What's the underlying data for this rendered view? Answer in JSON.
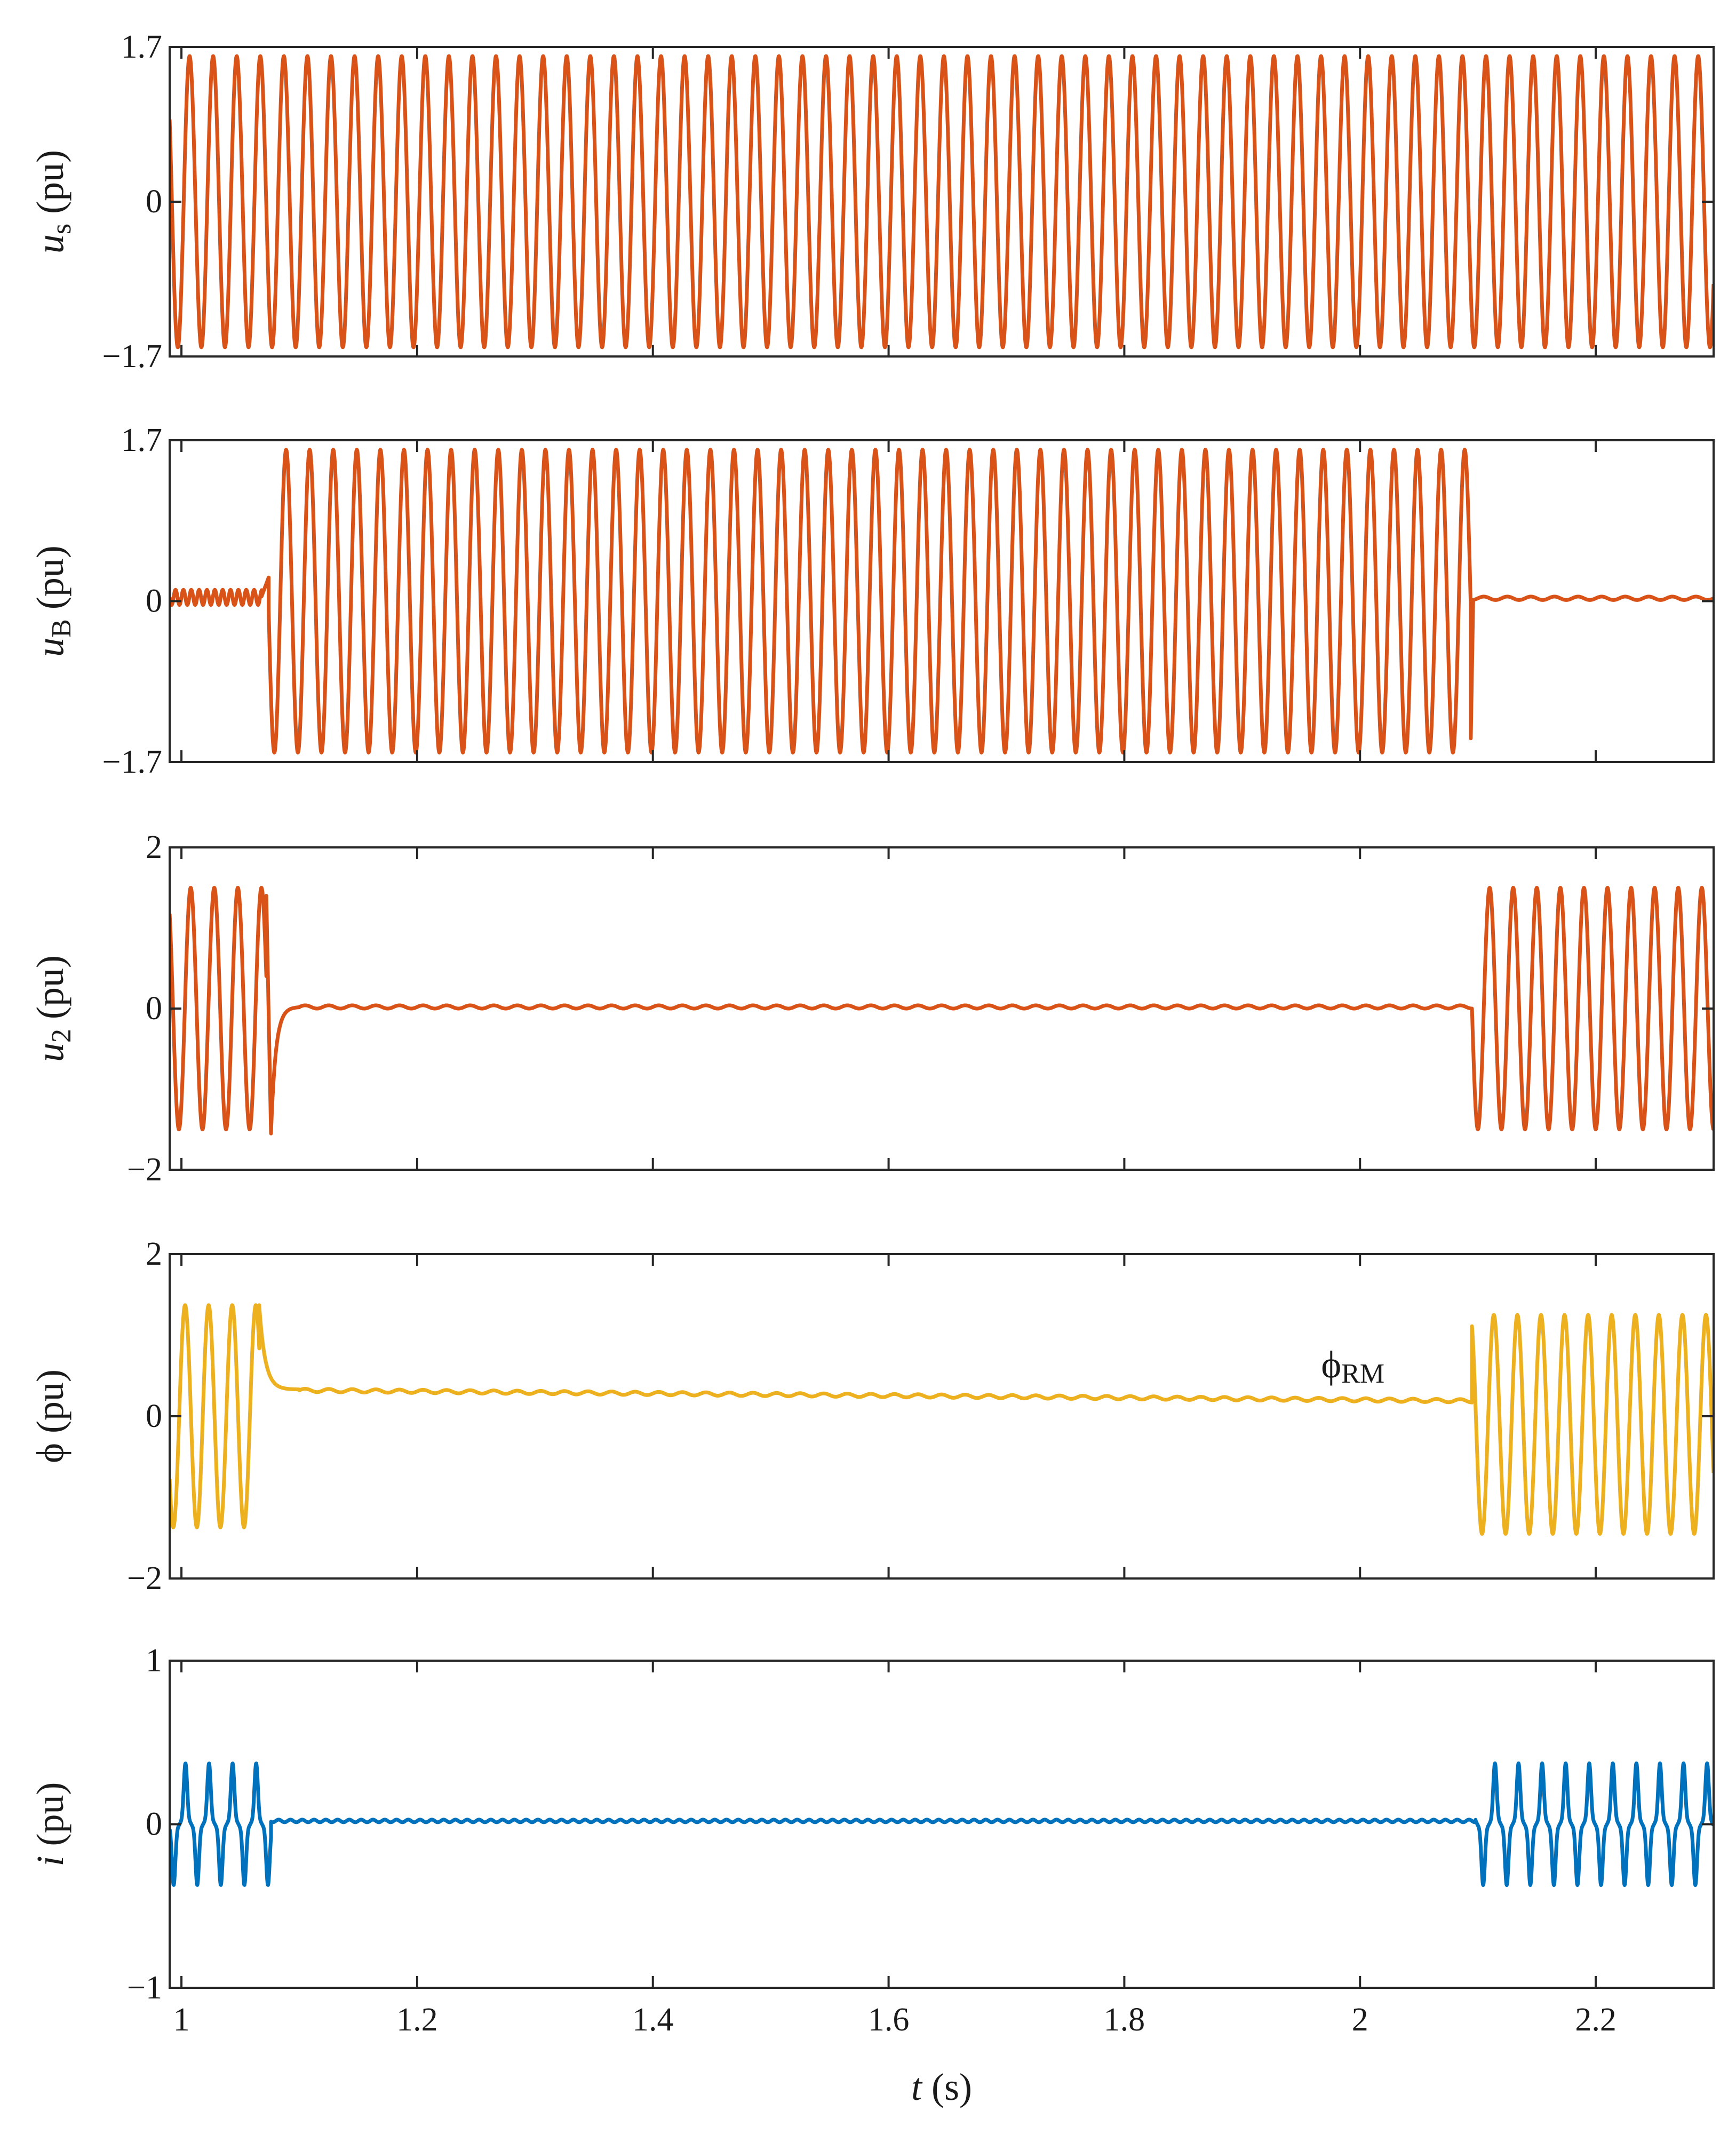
{
  "chart_data": [
    {
      "type": "line",
      "id": "us",
      "ylabel": {
        "symbol": "u",
        "sub": "s",
        "unit": " (pu)"
      },
      "ylim": [
        -1.7,
        1.7
      ],
      "yticks": [
        -1.7,
        0,
        1.7
      ],
      "ytick_labels": [
        "−1.7",
        "0",
        "1.7"
      ],
      "xlim": [
        0.99,
        2.3
      ],
      "grid": false,
      "series": [
        {
          "name": "us",
          "color": "#D95319",
          "segments": [
            {
              "t0": 0.99,
              "t1": 2.3,
              "kind": "sine",
              "amp": 1.6,
              "freq": 50,
              "phase": -0.6,
              "offset": 0
            }
          ]
        }
      ]
    },
    {
      "type": "line",
      "id": "uB",
      "ylabel": {
        "symbol": "u",
        "sub": "B",
        "unit": " (pu)"
      },
      "ylim": [
        -1.7,
        1.7
      ],
      "yticks": [
        -1.7,
        0,
        1.7
      ],
      "ytick_labels": [
        "−1.7",
        "0",
        "1.7"
      ],
      "xlim": [
        0.99,
        2.3
      ],
      "grid": false,
      "series": [
        {
          "name": "uB",
          "color": "#D95319",
          "segments": [
            {
              "t0": 0.99,
              "t1": 1.068,
              "kind": "sine",
              "amp": 0.08,
              "freq": 150,
              "phase": 0,
              "offset": 0.04
            },
            {
              "t0": 1.068,
              "t1": 1.074,
              "kind": "ramp",
              "v0": 0.05,
              "v1": 0.25
            },
            {
              "t0": 1.074,
              "t1": 2.094,
              "kind": "sine",
              "amp": 1.6,
              "freq": 50,
              "phase": -1.2,
              "offset": 0
            },
            {
              "t0": 2.094,
              "t1": 2.096,
              "kind": "ramp",
              "v0": -1.45,
              "v1": 0.0
            },
            {
              "t0": 2.096,
              "t1": 2.3,
              "kind": "sine",
              "amp": 0.018,
              "freq": 50,
              "phase": 0,
              "offset": 0.03
            }
          ]
        }
      ]
    },
    {
      "type": "line",
      "id": "u2",
      "ylabel": {
        "symbol": "u",
        "sub": "2",
        "unit": " (pu)"
      },
      "ylim": [
        -2,
        2
      ],
      "yticks": [
        -2,
        0,
        2
      ],
      "ytick_labels": [
        "−2",
        "0",
        "2"
      ],
      "xlim": [
        0.99,
        2.3
      ],
      "grid": false,
      "series": [
        {
          "name": "u2",
          "color": "#D95319",
          "segments": [
            {
              "t0": 0.99,
              "t1": 1.072,
              "kind": "sine",
              "amp": 1.5,
              "freq": 50,
              "phase": -0.9,
              "offset": 0
            },
            {
              "t0": 1.072,
              "t1": 1.076,
              "kind": "ramp",
              "v0": 1.4,
              "v1": -1.55
            },
            {
              "t0": 1.076,
              "t1": 1.1,
              "kind": "decay",
              "v0": -1.55,
              "v1": 0.02,
              "tau": 0.004
            },
            {
              "t0": 1.1,
              "t1": 2.095,
              "kind": "sine",
              "amp": 0.02,
              "freq": 50,
              "phase": 0,
              "offset": 0.02
            },
            {
              "t0": 2.095,
              "t1": 2.3,
              "kind": "sine",
              "amp": 1.5,
              "freq": 50,
              "phase": -1.57,
              "offset": 0
            }
          ]
        }
      ]
    },
    {
      "type": "line",
      "id": "phi",
      "ylabel": {
        "symbol": "ϕ",
        "sub": "",
        "unit": " (pu)"
      },
      "ylim": [
        -2,
        2
      ],
      "yticks": [
        -2,
        0,
        2
      ],
      "ytick_labels": [
        "−2",
        "0",
        "2"
      ],
      "xlim": [
        0.99,
        2.3
      ],
      "grid": false,
      "annotation": {
        "text": "ϕ",
        "sub": "RM",
        "x": 1.967,
        "y": 0.48
      },
      "series": [
        {
          "name": "phi",
          "color": "#EDB120",
          "segments": [
            {
              "t0": 0.99,
              "t1": 1.066,
              "kind": "sine",
              "amp": 1.37,
              "freq": 50,
              "phase": 0.6,
              "offset": 0
            },
            {
              "t0": 1.066,
              "t1": 1.1,
              "kind": "decay",
              "v0": 1.37,
              "v1": 0.33,
              "tau": 0.005
            },
            {
              "t0": 1.1,
              "t1": 2.095,
              "kind": "drift",
              "v0": 0.32,
              "v1": 0.19,
              "amp": 0.02,
              "freq": 50
            },
            {
              "t0": 2.095,
              "t1": 2.3,
              "kind": "sine",
              "amp": 1.35,
              "freq": 50,
              "phase": 3.6,
              "offset": -0.1
            }
          ]
        }
      ]
    },
    {
      "type": "line",
      "id": "i",
      "ylabel": {
        "symbol": "i",
        "sub": "",
        "unit": " (pu)"
      },
      "ylim": [
        -1,
        1
      ],
      "yticks": [
        -1,
        0,
        1
      ],
      "ytick_labels": [
        "−1",
        "0",
        "1"
      ],
      "xlim": [
        0.99,
        2.3
      ],
      "xticks": [
        1,
        1.2,
        1.4,
        1.6,
        1.8,
        2,
        2.2
      ],
      "xtick_labels": [
        "1",
        "1.2",
        "1.4",
        "1.6",
        "1.8",
        "2",
        "2.2"
      ],
      "xlabel": {
        "symbol": "t",
        "unit": " (s)"
      },
      "grid": false,
      "series": [
        {
          "name": "i",
          "color": "#0072BD",
          "segments": [
            {
              "t0": 0.99,
              "t1": 1.076,
              "kind": "peaky",
              "amp": 0.38,
              "freq": 50,
              "phase": 0.5,
              "offset": 0
            },
            {
              "t0": 1.076,
              "t1": 2.098,
              "kind": "sine",
              "amp": 0.008,
              "freq": 100,
              "phase": 0,
              "offset": 0.02
            },
            {
              "t0": 2.098,
              "t1": 2.3,
              "kind": "peaky",
              "amp": 0.38,
              "freq": 50,
              "phase": 3.3,
              "offset": 0
            }
          ]
        }
      ]
    }
  ]
}
